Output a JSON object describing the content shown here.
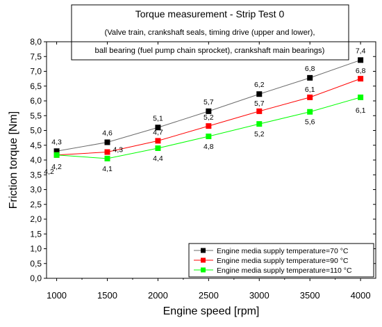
{
  "chart_data": {
    "type": "line",
    "title": "Torque measurement - Strip Test 0",
    "subtitle_lines": [
      "(Valve train, crankshaft seals, timing drive (upper and lower),",
      "ball bearing (fuel pump chain sprocket), crankshaft main bearings)"
    ],
    "xlabel": "Engine speed [rpm]",
    "ylabel": "Friction torque [Nm]",
    "x": [
      1000,
      1500,
      2000,
      2500,
      3000,
      3500,
      4000
    ],
    "xlim": [
      900,
      4150
    ],
    "ylim": [
      0,
      8
    ],
    "x_ticks": [
      "1000",
      "1500",
      "2000",
      "2500",
      "3000",
      "3500",
      "4000"
    ],
    "y_ticks": [
      "0,0",
      "0,5",
      "1,0",
      "1,5",
      "2,0",
      "2,5",
      "3,0",
      "3,5",
      "4,0",
      "4,5",
      "5,0",
      "5,5",
      "6,0",
      "6,5",
      "7,0",
      "7,5",
      "8,0"
    ],
    "grid": false,
    "legend_position": "bottom-right",
    "series": [
      {
        "name": "Engine media supply temperature=70 °C",
        "color": "#000000",
        "line_color": "#6b6b6b",
        "values": [
          4.3,
          4.6,
          5.1,
          5.65,
          6.23,
          6.78,
          7.38
        ],
        "labels": [
          "4,3",
          "4,6",
          "5,1",
          "5,7",
          "6,2",
          "6,8",
          "7,4"
        ]
      },
      {
        "name": "Engine media supply temperature=90 °C",
        "color": "#ff0000",
        "line_color": "#ff0000",
        "values": [
          4.17,
          4.27,
          4.65,
          5.15,
          5.65,
          6.12,
          6.75
        ],
        "labels": [
          "4,2",
          "4,3",
          "4,7",
          "5,2",
          "5,7",
          "6,1",
          "6,8"
        ]
      },
      {
        "name": "Engine media supply temperature=110 °C",
        "color": "#00ff00",
        "line_color": "#00ff00",
        "values": [
          4.17,
          4.05,
          4.4,
          4.8,
          5.22,
          5.63,
          6.12
        ],
        "labels": [
          "4,2",
          "4,1",
          "4,4",
          "4,8",
          "5,2",
          "5,6",
          "6,1"
        ]
      }
    ]
  }
}
